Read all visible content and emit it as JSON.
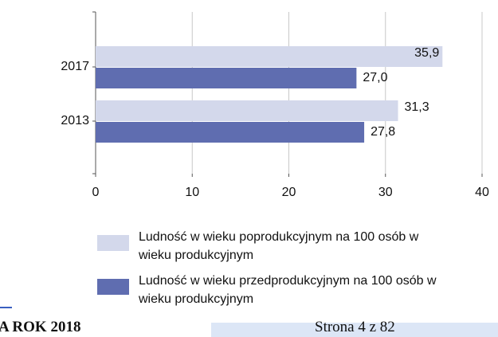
{
  "chart_data": {
    "type": "barh",
    "categories": [
      "2017",
      "2013"
    ],
    "series": [
      {
        "name": "Ludność w wieku poprodukcyjnym na 100 osób w wieku produkcyjnym",
        "color": "#d3d8eb",
        "values": [
          35.9,
          31.3
        ],
        "value_labels": [
          "35,9",
          "31,3"
        ]
      },
      {
        "name": "Ludność w wieku przedprodukcyjnym na 100 osób w wieku produkcyjnym",
        "color": "#5f6db0",
        "values": [
          27.0,
          27.8
        ],
        "value_labels": [
          "27,0",
          "27,8"
        ]
      }
    ],
    "xlim": [
      0,
      40
    ],
    "xticks": [
      0,
      10,
      20,
      30,
      40
    ],
    "grid": true,
    "legend": "bottom"
  },
  "footer": {
    "left": "A ROK 2018",
    "right": "Strona 4 z 82"
  }
}
